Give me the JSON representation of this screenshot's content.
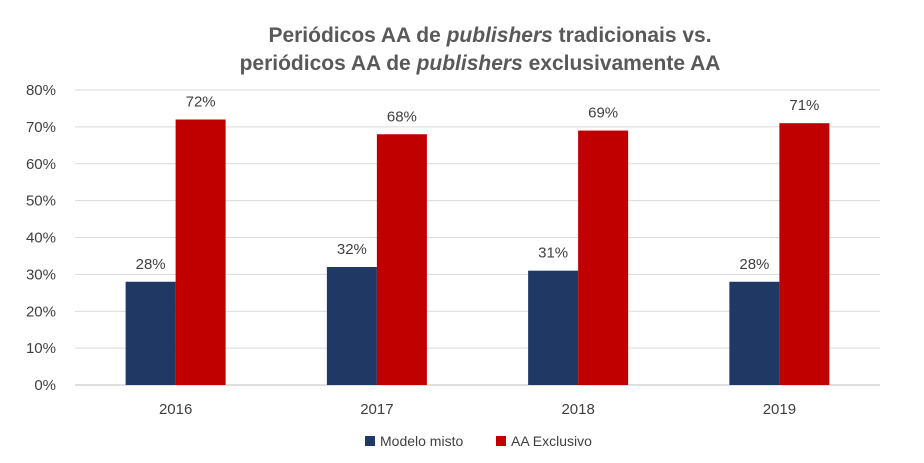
{
  "chart_data": {
    "type": "bar",
    "title": {
      "line1_prefix": "Periódicos AA de ",
      "line1_emph": "publishers",
      "line1_suffix": " tradicionais vs.",
      "line2_prefix": "periódicos AA de ",
      "line2_emph": "publishers",
      "line2_suffix": " exclusivamente AA"
    },
    "categories": [
      "2016",
      "2017",
      "2018",
      "2019"
    ],
    "series": [
      {
        "name": "Modelo misto",
        "color": "#1f3864",
        "values": [
          28,
          32,
          31,
          28
        ],
        "labels": [
          "28%",
          "32%",
          "31%",
          "28%"
        ]
      },
      {
        "name": "AA Exclusivo",
        "color": "#c00000",
        "values": [
          72,
          68,
          69,
          71
        ],
        "labels": [
          "72%",
          "68%",
          "69%",
          "71%"
        ]
      }
    ],
    "ylim": [
      0,
      80
    ],
    "yticks": [
      "0%",
      "10%",
      "20%",
      "30%",
      "40%",
      "50%",
      "60%",
      "70%",
      "80%"
    ],
    "grid": true,
    "legend_position": "bottom"
  }
}
